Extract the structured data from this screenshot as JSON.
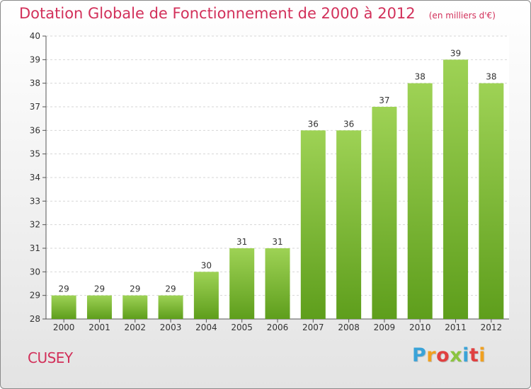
{
  "chart_data": {
    "type": "bar",
    "title": "Dotation Globale de Fonctionnement de 2000 à 2012",
    "subtitle": "(en milliers d'€)",
    "categories": [
      "2000",
      "2001",
      "2002",
      "2003",
      "2004",
      "2005",
      "2006",
      "2007",
      "2008",
      "2009",
      "2010",
      "2011",
      "2012"
    ],
    "values": [
      29,
      29,
      29,
      29,
      30,
      31,
      31,
      36,
      36,
      37,
      38,
      39,
      38
    ],
    "data_labels": [
      "29",
      "29",
      "29",
      "29",
      "30",
      "31",
      "31",
      "36",
      "36",
      "37",
      "38",
      "39",
      "38"
    ],
    "ylim": [
      28,
      40
    ],
    "yticks": [
      28,
      29,
      30,
      31,
      32,
      33,
      34,
      35,
      36,
      37,
      38,
      39,
      40
    ],
    "grid": true,
    "bar_color": "#7cc23a"
  },
  "footer": {
    "commune": "CUSEY",
    "brand": "Proxiti",
    "brand_colors": [
      "#3aa3d8",
      "#f0a020",
      "#e04040",
      "#8bc43f",
      "#3aa3d8",
      "#e04040",
      "#f0a020"
    ]
  }
}
